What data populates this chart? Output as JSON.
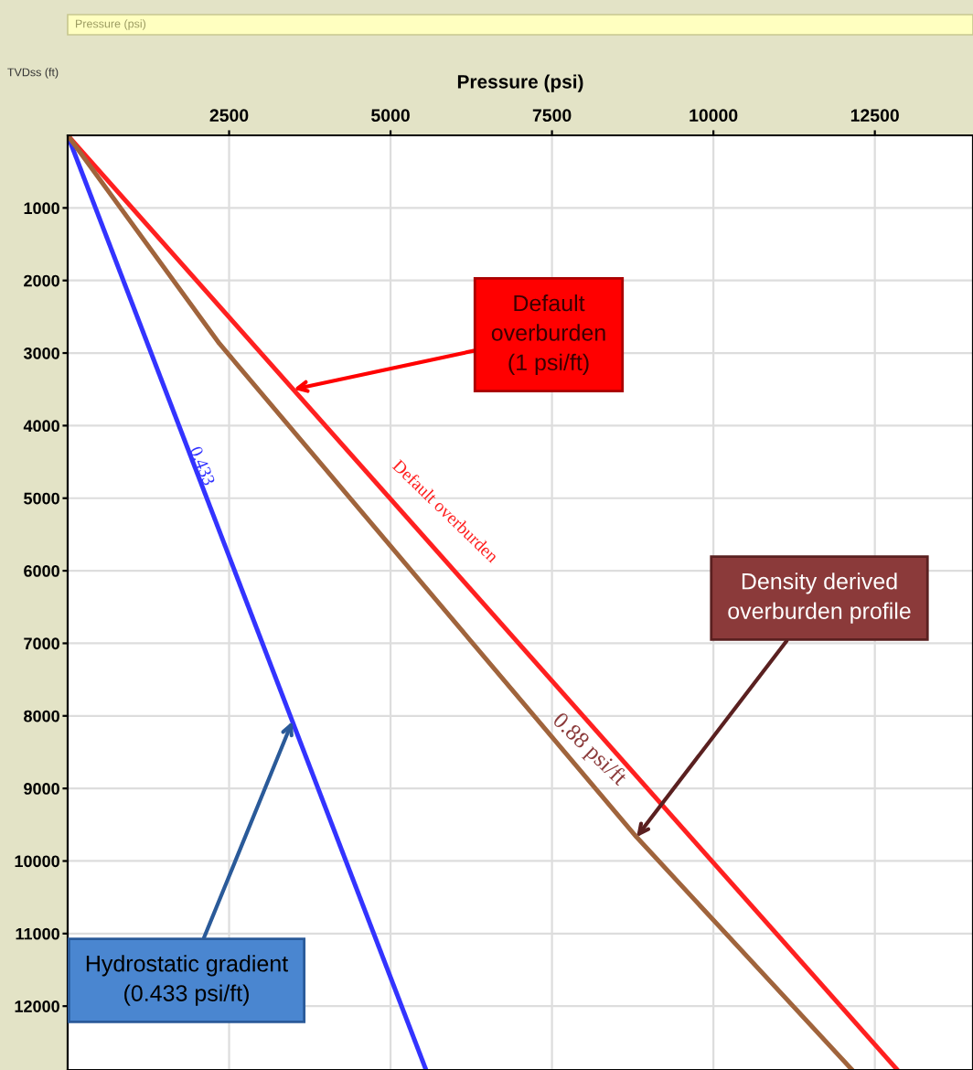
{
  "chart_data": {
    "type": "line",
    "title": "Pressure (psi)",
    "xlabel": "Pressure (psi)",
    "ylabel": "TVDss (ft)",
    "series": [
      {
        "color": "#3333ff",
        "x": [
          0,
          5550
        ],
        "values": [
          0,
          12880
        ]
      },
      {
        "color": "#ff2020",
        "x": [
          0,
          12850
        ],
        "values": [
          0,
          12880
        ]
      },
      {
        "color": "#a0643c",
        "x": [
          0,
          2350,
          8810,
          12150
        ],
        "values": [
          0,
          2870,
          9670,
          12880
        ]
      }
    ],
    "xlim": [
      0,
      14020
    ],
    "xticks": [
      2500,
      5000,
      7500,
      10000,
      12500
    ],
    "ylim": [
      12880,
      0
    ],
    "yticks": [
      1000,
      2000,
      3000,
      4000,
      5000,
      6000,
      7000,
      8000,
      9000,
      10000,
      11000,
      12000
    ],
    "grid": true,
    "marker": "none",
    "line_style": "solid",
    "annotations": [
      {
        "text": "Default\noverburden\n(1 psi/ft)",
        "x": 3500,
        "y": 3500
      },
      {
        "text": "Density derived\noverburden profile",
        "x": 8810,
        "y": 9670
      },
      {
        "text": "Hydrostatic gradient\n(0.433 psi/ft)",
        "x": 3480,
        "y": 8075
      },
      "0.433",
      "Default overburden",
      "0.88 psi/ft"
    ]
  }
}
